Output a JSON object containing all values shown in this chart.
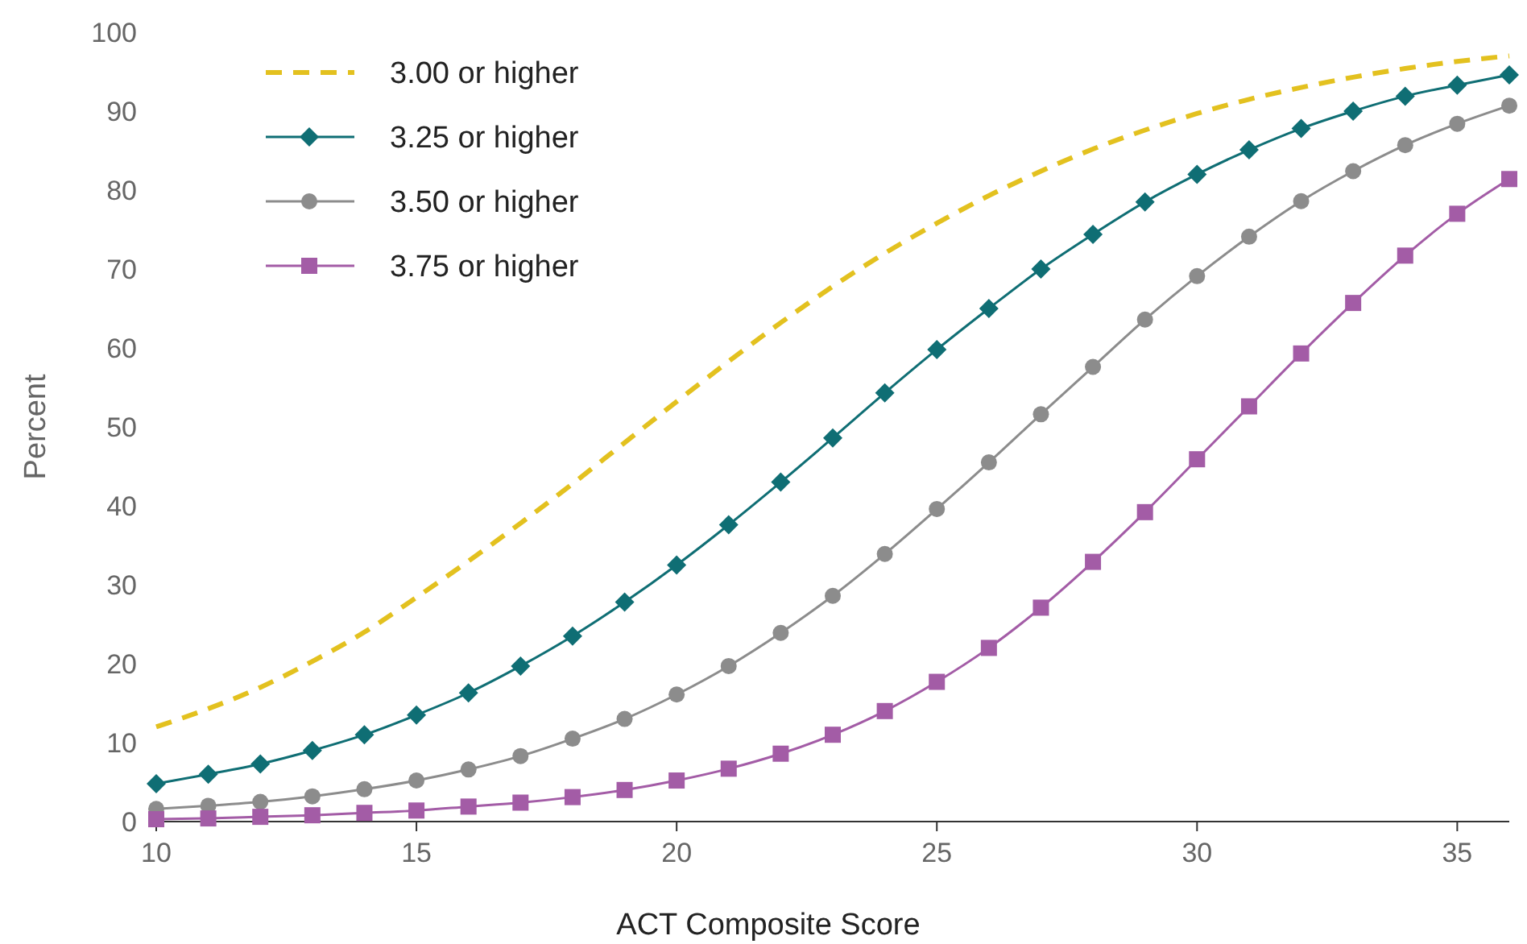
{
  "chart_data": {
    "type": "line",
    "xlabel": "ACT Composite Score",
    "ylabel": "Percent",
    "x": [
      10,
      11,
      12,
      13,
      14,
      15,
      16,
      17,
      18,
      19,
      20,
      21,
      22,
      23,
      24,
      25,
      26,
      27,
      28,
      29,
      30,
      31,
      32,
      33,
      34,
      35,
      36
    ],
    "xlim": [
      10,
      36
    ],
    "xticks": [
      10,
      15,
      20,
      25,
      30,
      35
    ],
    "ylim": [
      0,
      100
    ],
    "yticks": [
      0,
      10,
      20,
      30,
      40,
      50,
      60,
      70,
      80,
      90,
      100
    ],
    "grid": false,
    "legend": "top left",
    "series": [
      {
        "name": "3.00 or higher",
        "color": "#e3c11f",
        "marker": "none",
        "line_style": "dashed",
        "values": [
          12,
          14.3,
          17,
          20.3,
          24,
          28.4,
          33,
          37.8,
          42.8,
          48,
          53.2,
          58.3,
          63.2,
          67.8,
          72,
          75.8,
          79.3,
          82.4,
          85.2,
          87.6,
          89.7,
          91.5,
          93,
          94.3,
          95.4,
          96.3,
          97
        ]
      },
      {
        "name": "3.25 or higher",
        "color": "#0f6e74",
        "marker": "diamond",
        "line_style": "solid",
        "values": [
          4.8,
          6,
          7.3,
          9,
          11,
          13.5,
          16.3,
          19.7,
          23.5,
          27.8,
          32.5,
          37.6,
          43,
          48.6,
          54.3,
          59.8,
          65,
          70,
          74.4,
          78.5,
          82,
          85.1,
          87.8,
          90,
          91.9,
          93.3,
          94.6
        ]
      },
      {
        "name": "3.50 or higher",
        "color": "#8c8c8c",
        "marker": "circle",
        "line_style": "solid",
        "values": [
          1.6,
          2,
          2.5,
          3.2,
          4.1,
          5.2,
          6.6,
          8.3,
          10.5,
          13,
          16.1,
          19.7,
          23.9,
          28.6,
          33.9,
          39.6,
          45.5,
          51.6,
          57.6,
          63.6,
          69.1,
          74.1,
          78.6,
          82.4,
          85.7,
          88.4,
          90.7
        ]
      },
      {
        "name": "3.75 or higher",
        "color": "#a35ca6",
        "marker": "square",
        "line_style": "solid",
        "values": [
          0.3,
          0.4,
          0.6,
          0.8,
          1.1,
          1.4,
          1.9,
          2.4,
          3.1,
          4,
          5.2,
          6.7,
          8.6,
          11,
          14,
          17.7,
          22,
          27.1,
          32.9,
          39.2,
          45.9,
          52.6,
          59.3,
          65.7,
          71.7,
          77,
          81.4
        ]
      }
    ]
  }
}
